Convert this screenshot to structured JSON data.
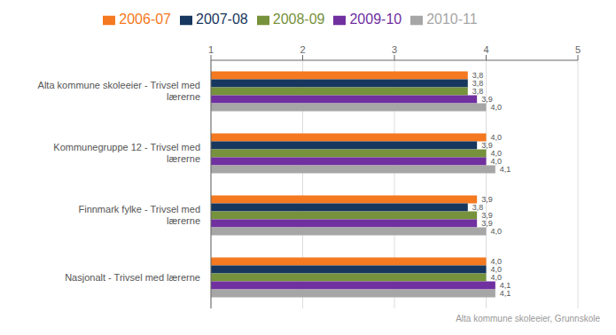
{
  "chart_data": {
    "type": "bar",
    "orientation": "horizontal",
    "categories": [
      "Alta kommune skoleeier - Trivsel med\nlærerne",
      "Kommunegruppe 12 - Trivsel med\nlærerne",
      "Finnmark fylke - Trivsel med\nlærerne",
      "Nasjonalt - Trivsel med lærerne"
    ],
    "series": [
      {
        "name": "2006-07",
        "color": "#F47920",
        "values": [
          3.8,
          4.0,
          3.9,
          4.0
        ],
        "value_labels": [
          "3,8",
          "4,0",
          "3,9",
          "4,0"
        ]
      },
      {
        "name": "2007-08",
        "color": "#17375E",
        "values": [
          3.8,
          3.9,
          3.8,
          4.0
        ],
        "value_labels": [
          "3,8",
          "3,9",
          "3,8",
          "4,0"
        ]
      },
      {
        "name": "2008-09",
        "color": "#76923C",
        "values": [
          3.8,
          4.0,
          3.9,
          4.0
        ],
        "value_labels": [
          "3,8",
          "4,0",
          "3,9",
          "4,0"
        ]
      },
      {
        "name": "2009-10",
        "color": "#7030A0",
        "values": [
          3.9,
          4.0,
          3.9,
          4.1
        ],
        "value_labels": [
          "3,9",
          "4,0",
          "3,9",
          "4,1"
        ]
      },
      {
        "name": "2010-11",
        "color": "#A6A6A6",
        "values": [
          4.0,
          4.1,
          4.0,
          4.1
        ],
        "value_labels": [
          "4,0",
          "4,1",
          "4,0",
          "4,1"
        ]
      }
    ],
    "xlim": [
      1,
      5
    ],
    "xticks": [
      1,
      2,
      3,
      4,
      5
    ],
    "grid": true,
    "legend": "top",
    "data_labels": true,
    "annotations": [
      "Alta kommune skoleeier, Grunnskole"
    ]
  }
}
